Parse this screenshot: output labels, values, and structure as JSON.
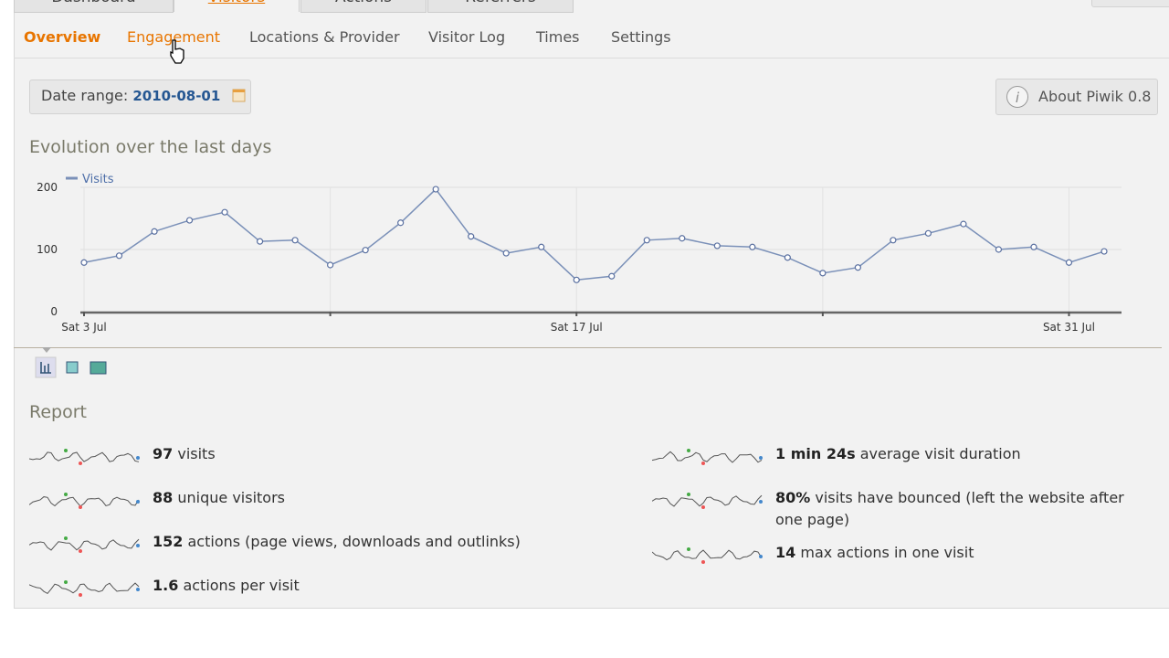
{
  "tabs": [
    "Dashboard",
    "Visitors",
    "Actions",
    "Referrers"
  ],
  "subnav": [
    "Overview",
    "Engagement",
    "Locations & Provider",
    "Visitor Log",
    "Times",
    "Settings"
  ],
  "date_range": {
    "label": "Date range:",
    "value": "2010-08-01"
  },
  "about": "About Piwik 0.8",
  "chart_data": {
    "type": "line",
    "title": "Evolution over the last days",
    "categories": [
      "Sat 3 Jul",
      null,
      null,
      null,
      null,
      null,
      null,
      null,
      null,
      null,
      null,
      null,
      null,
      null,
      "Sat 17 Jul",
      null,
      null,
      null,
      null,
      null,
      null,
      null,
      null,
      null,
      null,
      null,
      null,
      null,
      "Sat 31 Jul",
      null
    ],
    "series": [
      {
        "name": "Visits",
        "color": "#7a90b8",
        "values": [
          79,
          90,
          129,
          147,
          160,
          113,
          115,
          75,
          99,
          143,
          197,
          121,
          94,
          104,
          51,
          57,
          115,
          118,
          106,
          104,
          87,
          62,
          71,
          115,
          126,
          141,
          100,
          104,
          79,
          97
        ]
      }
    ],
    "ylim": [
      0,
      200
    ],
    "yticks": [
      0,
      100,
      200
    ],
    "grid": true
  },
  "report": {
    "title": "Report",
    "left": [
      {
        "value": "97",
        "text": "visits"
      },
      {
        "value": "88",
        "text": "unique visitors"
      },
      {
        "value": "152",
        "text": "actions (page views, downloads and outlinks)"
      },
      {
        "value": "1.6",
        "text": "actions per visit"
      }
    ],
    "right": [
      {
        "value": "1 min 24s",
        "text": "average visit duration"
      },
      {
        "value": "80%",
        "text": "visits have bounced (left the website after one page)"
      },
      {
        "value": "14",
        "text": "max actions in one visit"
      }
    ]
  }
}
